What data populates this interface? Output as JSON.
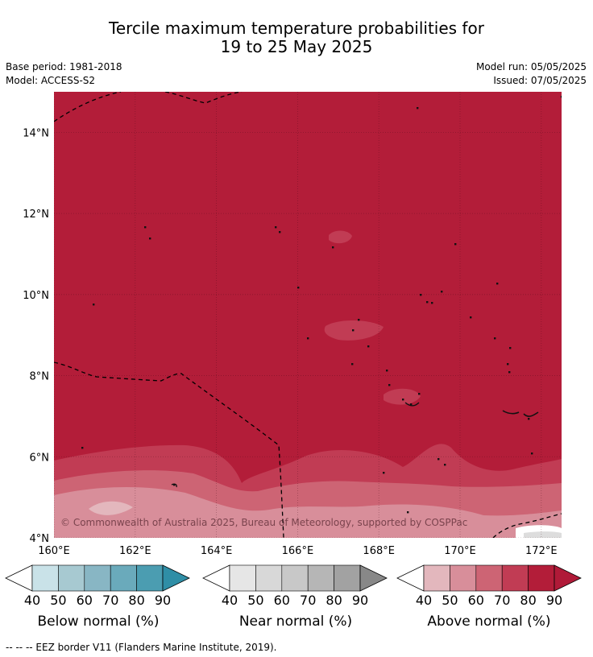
{
  "title": {
    "line1": "Tercile maximum temperature probabilities for",
    "line2": "19 to 25 May 2025"
  },
  "meta": {
    "base_period": "Base period: 1981-2018",
    "model": "Model: ACCESS-S2",
    "model_run": "Model run: 05/05/2025",
    "issued": "Issued: 07/05/2025"
  },
  "copyright": "© Commonwealth of Australia 2025, Bureau of Meteorology, supported by COSPPac",
  "footer": "--  --  -- EEZ border V11 (Flanders Marine Institute, 2019).",
  "colors": {
    "above_80_90": "#b31d39",
    "above_70_80": "#c13c54",
    "above_60_70": "#cd6474",
    "above_50_60": "#d88e9a",
    "above_40_50": "#e3b7bd",
    "above_90_plus": "#b01a38",
    "below": [
      "#c9e2e8",
      "#a7c9d1",
      "#88b6c4",
      "#6aaabb",
      "#4b9db1",
      "#2f8ea6"
    ],
    "near": [
      "#e6e6e6",
      "#d8d8d8",
      "#c8c8c8",
      "#b6b6b6",
      "#a2a2a2",
      "#888888"
    ]
  },
  "chart_data": {
    "type": "heatmap",
    "title": "Tercile maximum temperature probabilities for 19 to 25 May 2025",
    "x_axis": {
      "range": [
        160,
        172.5
      ],
      "ticks": [
        160,
        162,
        164,
        166,
        168,
        170,
        172
      ],
      "tick_labels": [
        "160°E",
        "162°E",
        "164°E",
        "166°E",
        "168°E",
        "170°E",
        "172°E"
      ]
    },
    "y_axis": {
      "range": [
        4,
        15
      ],
      "ticks": [
        4,
        6,
        8,
        10,
        12,
        14
      ],
      "tick_labels": [
        "4°N",
        "6°N",
        "8°N",
        "10°N",
        "12°N",
        "14°N"
      ]
    },
    "grid": true,
    "dominant_category": "Above normal",
    "field_summary": [
      {
        "region": "most of domain",
        "category": "Above normal",
        "probability_range": "80-90"
      },
      {
        "region": "south of ~6°N",
        "category": "Above normal",
        "probability_range": "50-80"
      }
    ],
    "colorbars": [
      {
        "label": "Below normal (%)",
        "ticks": [
          "40",
          "50",
          "60",
          "70",
          "80",
          "90"
        ]
      },
      {
        "label": "Near normal (%)",
        "ticks": [
          "40",
          "50",
          "60",
          "70",
          "80",
          "90"
        ]
      },
      {
        "label": "Above normal (%)",
        "ticks": [
          "40",
          "50",
          "60",
          "70",
          "80",
          "90"
        ]
      }
    ]
  }
}
